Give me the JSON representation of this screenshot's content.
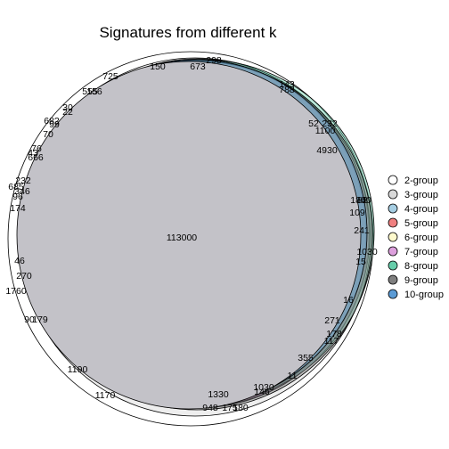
{
  "chart_data": {
    "type": "venn",
    "title": "Signatures from different k",
    "legend_position": "right",
    "series": [
      {
        "name": "2-group",
        "color": "#FFFFFF"
      },
      {
        "name": "3-group",
        "color": "#D9D9D9"
      },
      {
        "name": "4-group",
        "color": "#A6CEE3"
      },
      {
        "name": "5-group",
        "color": "#F08080"
      },
      {
        "name": "6-group",
        "color": "#FFFACD"
      },
      {
        "name": "7-group",
        "color": "#DDA0DD"
      },
      {
        "name": "8-group",
        "color": "#66CDAA"
      },
      {
        "name": "9-group",
        "color": "#7F7F7F"
      },
      {
        "name": "10-group",
        "color": "#5B9BD5"
      }
    ],
    "main_region_value": "113000",
    "region_labels": [
      "298",
      "150",
      "673",
      "725",
      "143",
      "788",
      "555",
      "156",
      "52",
      "232",
      "1100",
      "30",
      "22",
      "4930",
      "682",
      "99",
      "70",
      "76",
      "43",
      "666",
      "232",
      "685",
      "346",
      "96",
      "174",
      "109",
      "241",
      "180",
      "82",
      "40",
      "1030",
      "15",
      "46",
      "270",
      "1760",
      "16",
      "271",
      "90",
      "179",
      "178",
      "117",
      "355",
      "1190",
      "11",
      "1330",
      "1030",
      "146",
      "1170",
      "948",
      "175",
      "180"
    ]
  }
}
